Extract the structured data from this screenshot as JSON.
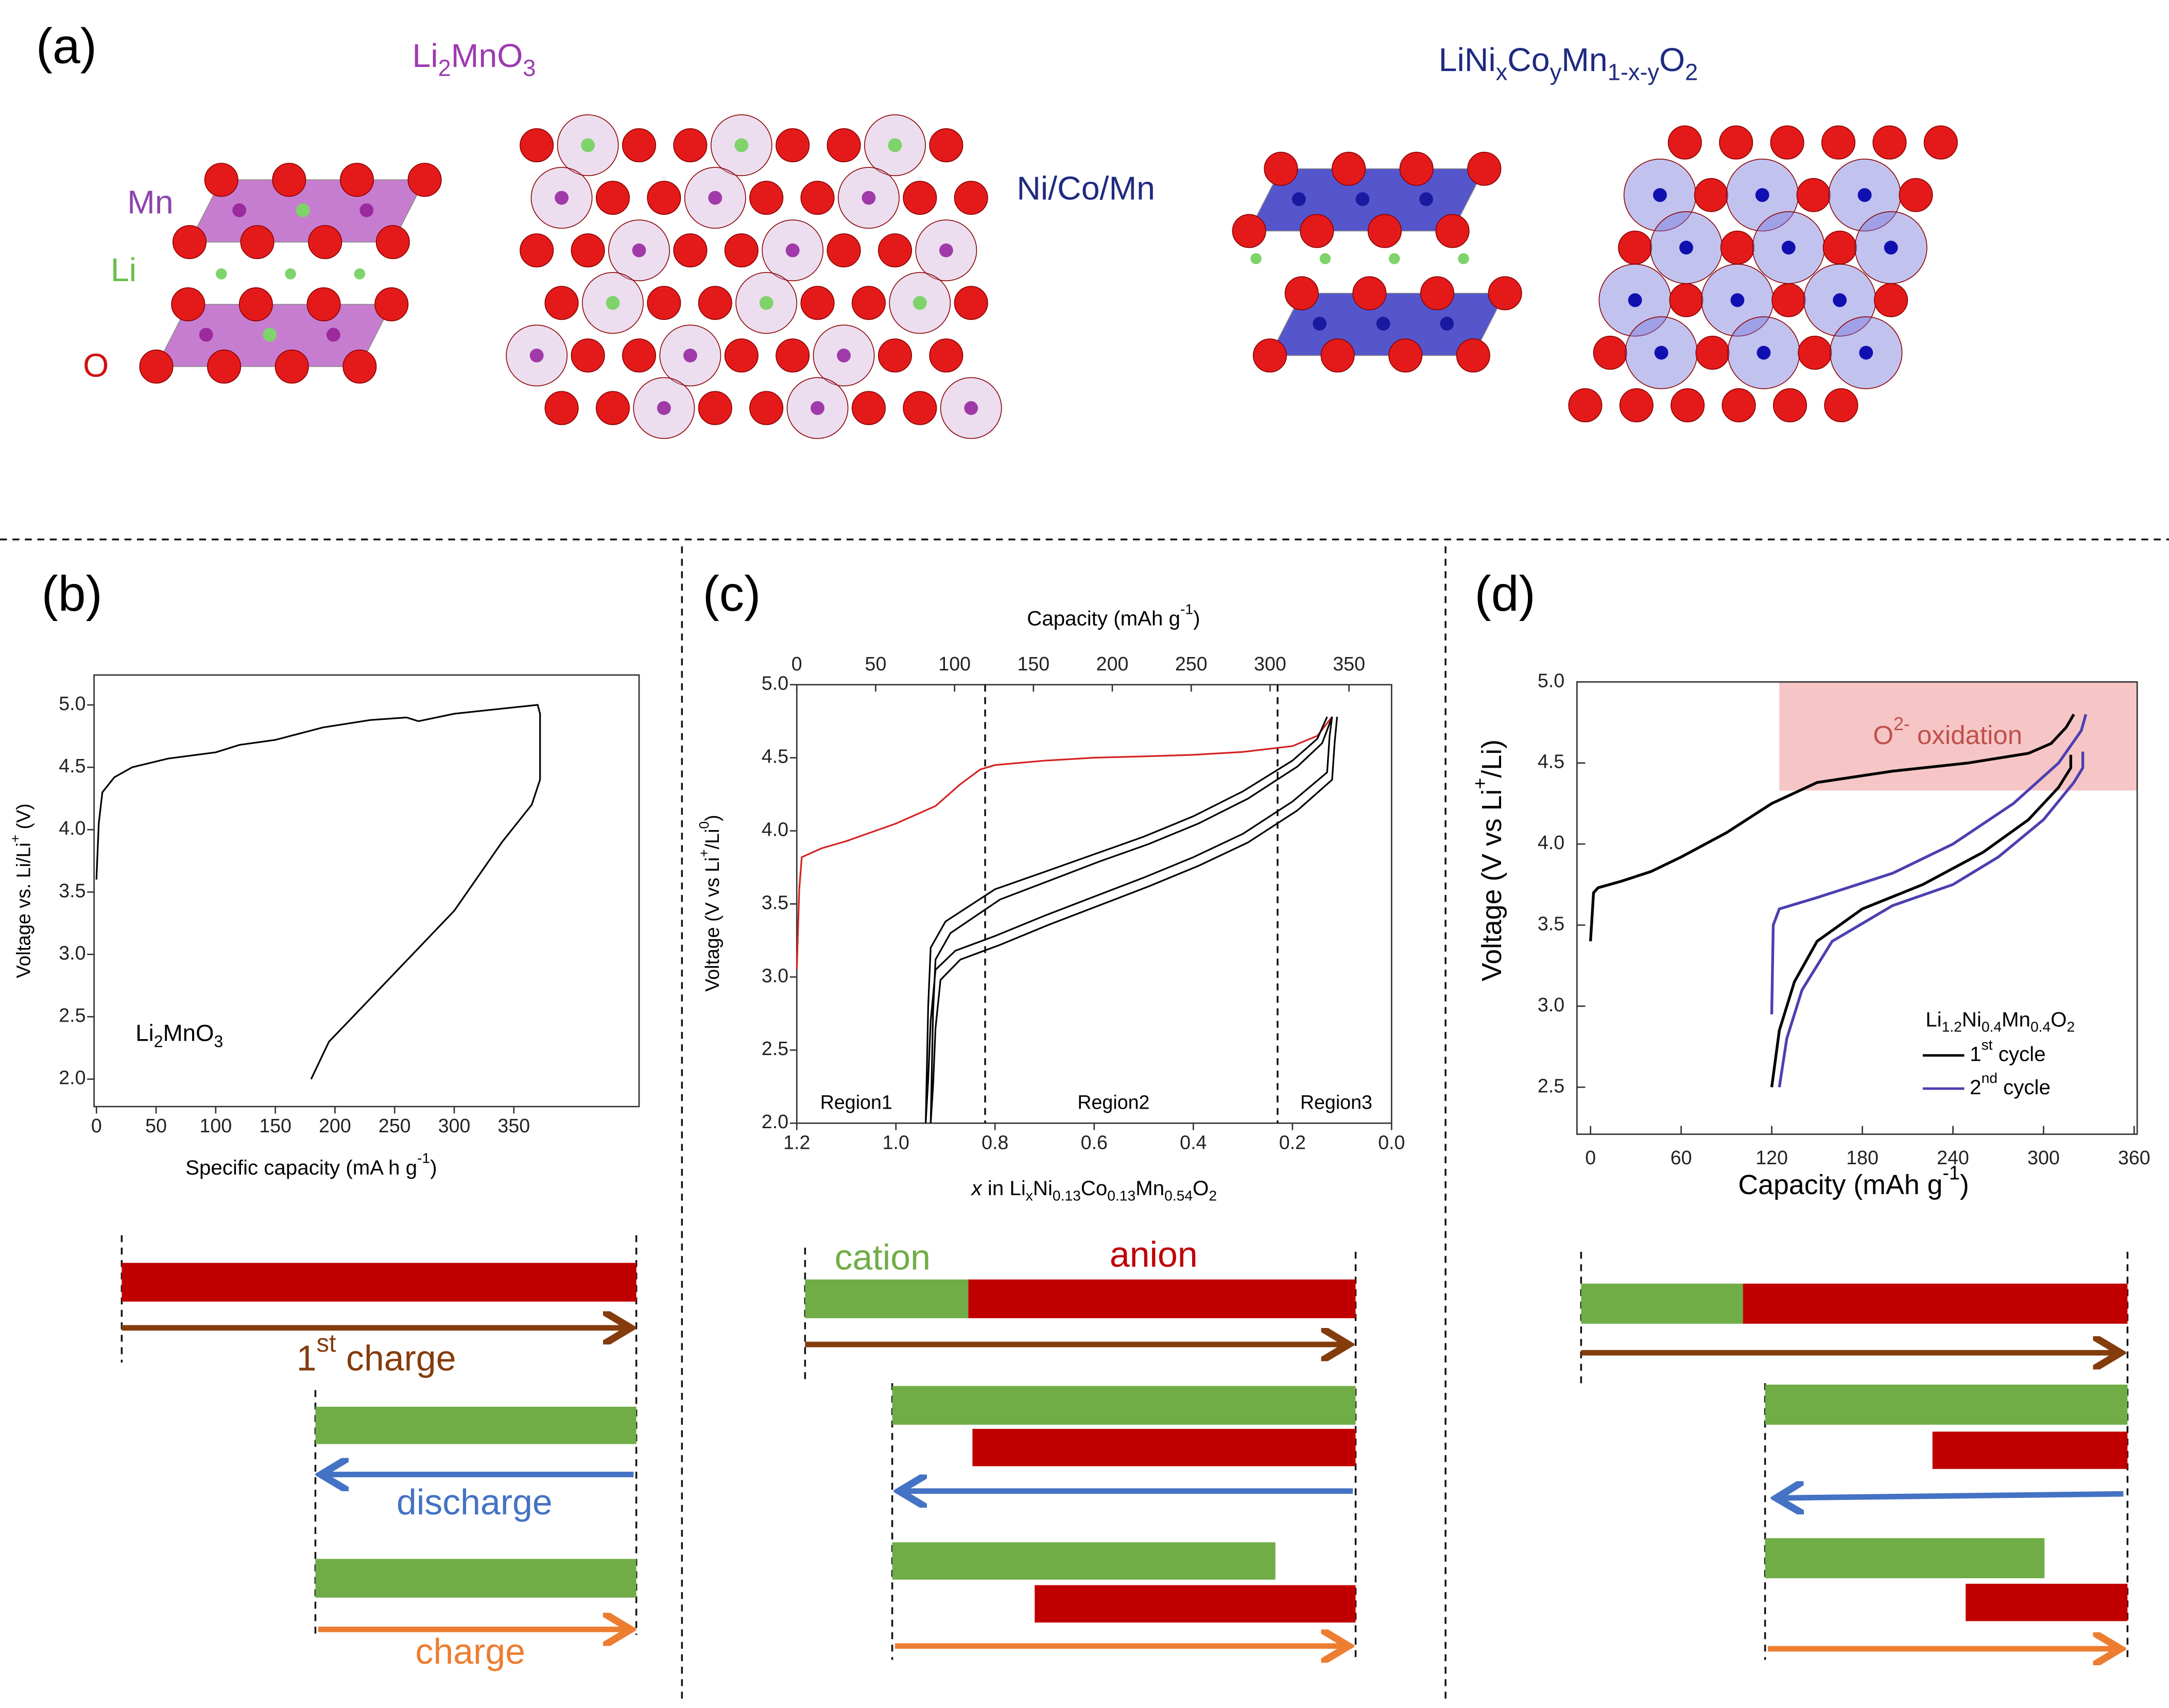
{
  "panel_labels": {
    "a": "(a)",
    "b": "(b)",
    "c": "(c)",
    "d": "(d)"
  },
  "structures": {
    "li2mno3": {
      "title": [
        "Li",
        {
          "sub": "2"
        },
        "MnO",
        {
          "sub": "3"
        }
      ],
      "labels": {
        "mn": "Mn",
        "li": "Li",
        "o": "O"
      }
    },
    "ncm": {
      "title": [
        "LiNi",
        {
          "sub": "x"
        },
        "Co",
        {
          "sub": "y"
        },
        "Mn",
        {
          "sub": "1-x-y"
        },
        "O",
        {
          "sub": "2"
        }
      ],
      "label": "Ni/Co/Mn"
    }
  },
  "chart_data": [
    {
      "type": "line",
      "xlabel": [
        "Specific capacity (mA h g",
        {
          "sup": "-1"
        },
        ")"
      ],
      "ylabel": [
        "Voltage vs. Li/Li",
        {
          "sup": "+"
        },
        " (V)"
      ],
      "annotation": [
        "Li",
        {
          "sub": "2"
        },
        "MnO",
        {
          "sub": "3"
        }
      ],
      "xlim": [
        -2,
        455
      ],
      "ylim": [
        1.78,
        5.24
      ],
      "xticks": [
        0,
        50,
        100,
        150,
        200,
        250,
        300,
        350
      ],
      "yticks": [
        {
          "value": 2,
          "label": "2.0"
        },
        2.5,
        {
          "value": 3,
          "label": "3.0"
        },
        3.5,
        {
          "value": 4,
          "label": "4.0"
        },
        4.5,
        {
          "value": 5,
          "label": "5.0"
        }
      ],
      "series": [
        {
          "color": "#000000",
          "x": [
            0,
            2,
            5,
            15,
            30,
            60,
            100,
            120,
            150,
            190,
            230,
            260,
            270,
            300,
            340,
            370,
            372,
            372,
            365,
            340,
            300,
            250,
            210,
            195,
            180
          ],
          "values": [
            3.6,
            4.05,
            4.3,
            4.42,
            4.5,
            4.57,
            4.62,
            4.68,
            4.72,
            4.82,
            4.88,
            4.9,
            4.87,
            4.93,
            4.97,
            5.0,
            4.93,
            4.4,
            4.2,
            3.9,
            3.35,
            2.85,
            2.45,
            2.3,
            2.0
          ]
        }
      ]
    },
    {
      "type": "line",
      "x2label": [
        "Capacity (mAh g",
        {
          "sup": "-1"
        },
        ")"
      ],
      "xlabel": [
        {
          "i": "x"
        },
        " in Li",
        {
          "sub": "x"
        },
        "Ni",
        {
          "sub": "0.13"
        },
        "Co",
        {
          "sub": "0.13"
        },
        "Mn",
        {
          "sub": "0.54"
        },
        "O",
        {
          "sub": "2"
        }
      ],
      "ylabel": [
        "Voltage (V vs Li",
        {
          "sup": "+"
        },
        "/Li",
        {
          "sup": "0"
        },
        ")"
      ],
      "xlim": [
        1.2,
        0.0
      ],
      "ylim": [
        2.0,
        5.0
      ],
      "xticks": [
        1.2,
        {
          "value": 1,
          "label": "1.0"
        },
        0.8,
        0.6,
        0.4,
        0.2,
        {
          "value": 0,
          "label": "0.0"
        }
      ],
      "x2lim": [
        0,
        377
      ],
      "x2ticks": [
        0,
        50,
        100,
        150,
        200,
        250,
        300,
        350
      ],
      "yticks": [
        {
          "value": 2,
          "label": "2.0"
        },
        2.5,
        {
          "value": 3,
          "label": "3.0"
        },
        3.5,
        {
          "value": 4,
          "label": "4.0"
        },
        4.5,
        {
          "value": 5,
          "label": "5.0"
        }
      ],
      "vlines": [
        0.82,
        0.23
      ],
      "region_labels": [
        "Region1",
        "Region2",
        "Region3"
      ],
      "series": [
        {
          "color": "#d62020",
          "x": [
            1.2,
            1.195,
            1.19,
            1.15,
            1.1,
            1.0,
            0.92,
            0.87,
            0.83,
            0.8,
            0.7,
            0.6,
            0.5,
            0.4,
            0.3,
            0.2,
            0.15,
            0.12
          ],
          "values": [
            3.05,
            3.6,
            3.82,
            3.88,
            3.93,
            4.05,
            4.17,
            4.32,
            4.42,
            4.45,
            4.48,
            4.5,
            4.51,
            4.52,
            4.54,
            4.58,
            4.65,
            4.78
          ]
        },
        {
          "color": "#000000",
          "x": [
            0.12,
            0.125,
            0.13,
            0.2,
            0.3,
            0.4,
            0.5,
            0.6,
            0.7,
            0.8,
            0.88,
            0.92,
            0.93,
            0.935,
            0.94,
            null,
            0.94,
            0.935,
            0.93,
            0.9,
            0.8,
            0.7,
            0.6,
            0.5,
            0.4,
            0.3,
            0.2,
            0.15,
            0.13,
            null,
            0.11,
            0.115,
            0.12,
            0.19,
            0.29,
            0.39,
            0.49,
            0.59,
            0.69,
            0.79,
            0.87,
            0.91,
            0.92,
            0.925,
            0.93,
            null,
            0.93,
            0.925,
            0.92,
            0.89,
            0.79,
            0.69,
            0.59,
            0.49,
            0.39,
            0.29,
            0.19,
            0.14,
            0.12
          ],
          "values": [
            4.78,
            4.65,
            4.4,
            4.2,
            3.98,
            3.82,
            3.68,
            3.55,
            3.42,
            3.28,
            3.18,
            3.05,
            2.7,
            2.3,
            2.0,
            null,
            2.0,
            2.8,
            3.2,
            3.38,
            3.6,
            3.72,
            3.84,
            3.96,
            4.1,
            4.27,
            4.48,
            4.63,
            4.78,
            null,
            4.78,
            4.6,
            4.35,
            4.14,
            3.92,
            3.76,
            3.62,
            3.49,
            3.36,
            3.22,
            3.12,
            2.98,
            2.65,
            2.25,
            2.0,
            null,
            2.0,
            2.75,
            3.12,
            3.3,
            3.53,
            3.66,
            3.79,
            3.91,
            4.05,
            4.22,
            4.44,
            4.6,
            4.78
          ]
        }
      ]
    },
    {
      "type": "line",
      "xlabel": [
        "Capacity (mAh g",
        {
          "sup": "-1"
        },
        ")"
      ],
      "ylabel": [
        "Voltage (V vs Li",
        {
          "sup": "+"
        },
        "/Li)"
      ],
      "xlim": [
        -9,
        362
      ],
      "ylim": [
        2.21,
        5.0
      ],
      "xticks": [
        0,
        60,
        120,
        180,
        240,
        300,
        360
      ],
      "yticks": [
        2.5,
        {
          "value": 3,
          "label": "3.0"
        },
        3.5,
        {
          "value": 4,
          "label": "4.0"
        },
        4.5,
        {
          "value": 5,
          "label": "5.0"
        }
      ],
      "highlight": {
        "label": [
          "O",
          {
            "sup": "2-"
          },
          " oxidation"
        ],
        "xlim": [
          125,
          362
        ],
        "ylim": [
          4.33,
          5.0
        ],
        "color": "#f6c6c6"
      },
      "legend": "lower right",
      "legend_title": [
        "Li",
        {
          "sub": "1.2"
        },
        "Ni",
        {
          "sub": "0.4"
        },
        "Mn",
        {
          "sub": "0.4"
        },
        "O",
        {
          "sub": "2"
        }
      ],
      "series": [
        {
          "name": [
            "1",
            {
              "sup": "st"
            },
            " cycle"
          ],
          "color": "#000000",
          "x": [
            0,
            2,
            5,
            20,
            40,
            60,
            90,
            120,
            150,
            200,
            250,
            290,
            305,
            315,
            320,
            null,
            120,
            125,
            135,
            150,
            180,
            220,
            260,
            290,
            310,
            318,
            318
          ],
          "values": [
            3.4,
            3.7,
            3.73,
            3.77,
            3.83,
            3.92,
            4.07,
            4.25,
            4.38,
            4.45,
            4.5,
            4.56,
            4.62,
            4.72,
            4.8,
            null,
            2.5,
            2.85,
            3.15,
            3.4,
            3.6,
            3.75,
            3.95,
            4.15,
            4.35,
            4.47,
            4.55
          ]
        },
        {
          "name": [
            "2",
            {
              "sup": "nd"
            },
            " cycle"
          ],
          "color": "#4b3fb0",
          "x": [
            120,
            121,
            125,
            150,
            200,
            240,
            280,
            310,
            325,
            328,
            null,
            125,
            130,
            140,
            160,
            200,
            240,
            270,
            300,
            320,
            326,
            326
          ],
          "values": [
            2.95,
            3.5,
            3.6,
            3.67,
            3.82,
            4.0,
            4.25,
            4.5,
            4.7,
            4.8,
            null,
            2.5,
            2.8,
            3.1,
            3.4,
            3.62,
            3.75,
            3.92,
            4.15,
            4.38,
            4.47,
            4.57
          ]
        }
      ]
    }
  ],
  "schematics": {
    "b": {
      "first_charge": [
        "1",
        {
          "sup": "st"
        },
        " charge"
      ],
      "discharge": "discharge",
      "charge": "charge"
    },
    "c": {
      "cation": "cation",
      "anion": "anion"
    }
  }
}
